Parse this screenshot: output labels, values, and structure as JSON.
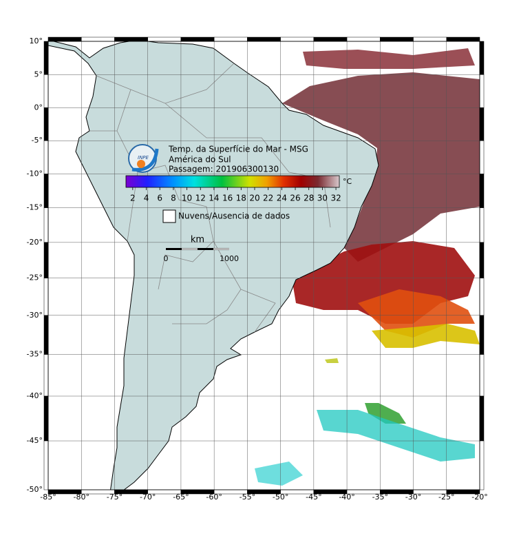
{
  "map": {
    "lon_range": [
      -85,
      -20
    ],
    "lat_range": [
      -50,
      10
    ],
    "lon_ticks": [
      {
        "value": -85,
        "label": "-85°"
      },
      {
        "value": -80,
        "label": "-80°"
      },
      {
        "value": -75,
        "label": "-75°"
      },
      {
        "value": -70,
        "label": "-70°"
      },
      {
        "value": -65,
        "label": "-65°"
      },
      {
        "value": -60,
        "label": "-60°"
      },
      {
        "value": -55,
        "label": "-55°"
      },
      {
        "value": -50,
        "label": "-50°"
      },
      {
        "value": -45,
        "label": "-45°"
      },
      {
        "value": -40,
        "label": "-40°"
      },
      {
        "value": -35,
        "label": "-35°"
      },
      {
        "value": -30,
        "label": "-30°"
      },
      {
        "value": -25,
        "label": "-25°"
      },
      {
        "value": -20,
        "label": "-20°"
      }
    ],
    "lat_ticks": [
      {
        "value": 10,
        "label": "10°"
      },
      {
        "value": 5,
        "label": "5°"
      },
      {
        "value": 0,
        "label": "0°"
      },
      {
        "value": -5,
        "label": "-5°"
      },
      {
        "value": -10,
        "label": "-10°"
      },
      {
        "value": -15,
        "label": "-15°"
      },
      {
        "value": -20,
        "label": "-20°"
      },
      {
        "value": -25,
        "label": "-25°"
      },
      {
        "value": -30,
        "label": "-30°"
      },
      {
        "value": -35,
        "label": "-35°"
      },
      {
        "value": -40,
        "label": "-40°"
      },
      {
        "value": -45,
        "label": "-45°"
      },
      {
        "value": -50,
        "label": "-50°"
      }
    ],
    "legend": {
      "title": "Temp. da Superfície do Mar - MSG",
      "region": "América do Sul",
      "pass": "Passagem: 201906300130",
      "logo": "INPE",
      "colorbar": {
        "range": [
          1,
          32.5
        ],
        "ticks": [
          2,
          4,
          6,
          8,
          10,
          12,
          14,
          16,
          18,
          20,
          22,
          24,
          26,
          28,
          30,
          32
        ],
        "unit": "°C"
      },
      "no_data": "Nuvens/Ausencia de dados",
      "scale": {
        "unit": "km",
        "start": "0",
        "end": "1000"
      }
    }
  }
}
